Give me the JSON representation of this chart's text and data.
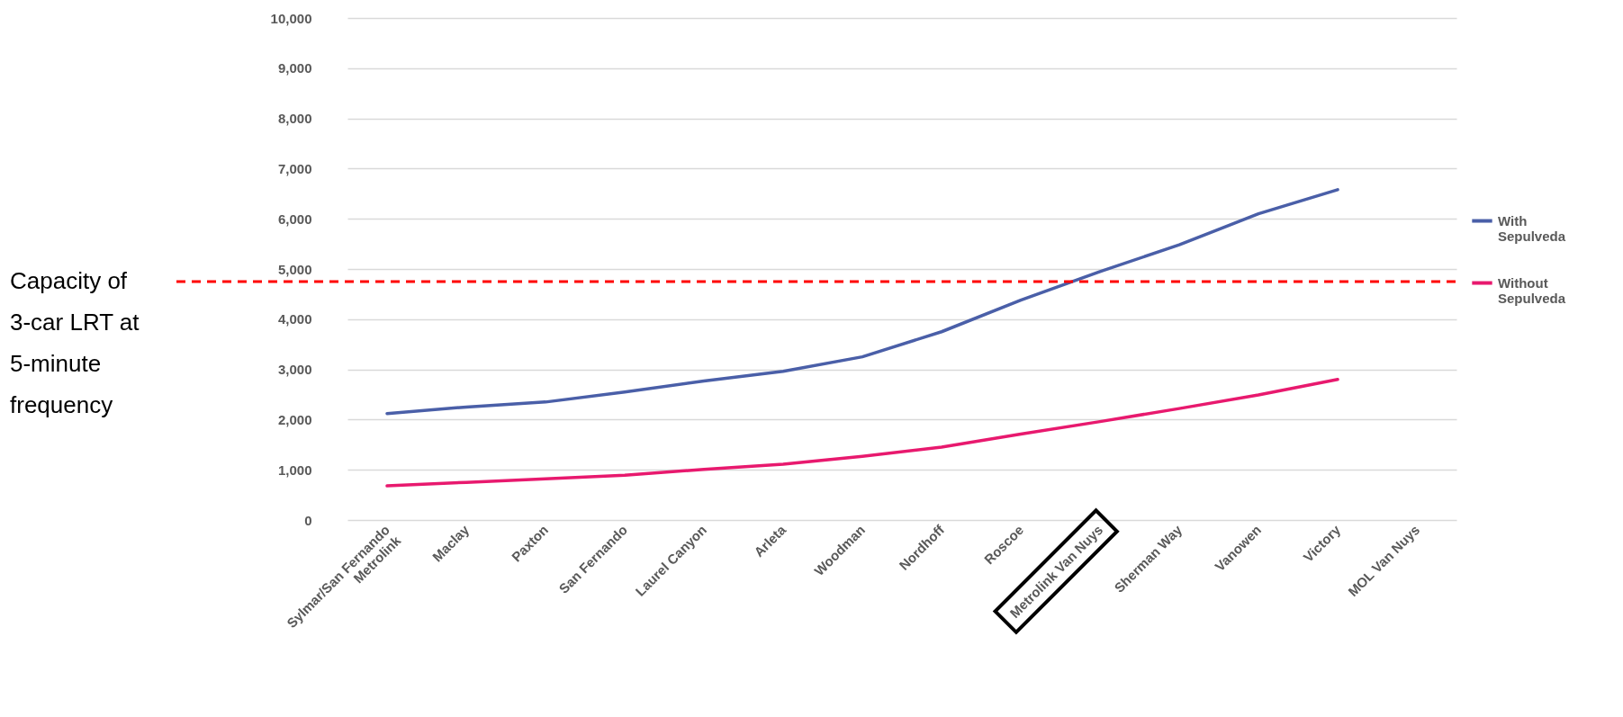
{
  "chart_data": {
    "type": "line",
    "categories": [
      "Sylmar/San Fernando Metrolink",
      "Maclay",
      "Paxton",
      "San Fernando",
      "Laurel Canyon",
      "Arleta",
      "Woodman",
      "Nordhoff",
      "Roscoe",
      "Metrolink Van Nuys",
      "Sherman Way",
      "Vanowen",
      "Victory",
      "MOL Van Nuys"
    ],
    "series": [
      {
        "name": "With Sepulveda",
        "color": "#4a5fa8",
        "values": [
          2120,
          2250,
          2350,
          2550,
          2770,
          2960,
          3250,
          3750,
          4380,
          4950,
          5480,
          6100,
          6580,
          null
        ]
      },
      {
        "name": "Without Sepulveda",
        "color": "#e8196e",
        "values": [
          680,
          750,
          820,
          890,
          1010,
          1110,
          1270,
          1450,
          1710,
          1960,
          2220,
          2490,
          2800,
          null
        ]
      }
    ],
    "ylim": [
      0,
      10000
    ],
    "yticks": [
      0,
      {
        "value": 1000,
        "label": "1,000"
      },
      {
        "value": 2000,
        "label": "2,000"
      },
      {
        "value": 3000,
        "label": "3,000"
      },
      {
        "value": 4000,
        "label": "4,000"
      },
      {
        "value": 5000,
        "label": "5,000"
      },
      {
        "value": 6000,
        "label": "6,000"
      },
      {
        "value": 7000,
        "label": "7,000"
      },
      {
        "value": 8000,
        "label": "8,000"
      },
      {
        "value": 9000,
        "label": "9,000"
      },
      {
        "value": 10000,
        "label": "10,000"
      }
    ],
    "grid": "y",
    "legend": "right",
    "marker": "none",
    "line_style": "solid",
    "ref_lines": [
      {
        "axis": "y",
        "value": 4750,
        "label": "Capacity of 3-car LRT at 5-minute frequency",
        "color": "#ff0000",
        "line_style": "dashed"
      }
    ]
  }
}
